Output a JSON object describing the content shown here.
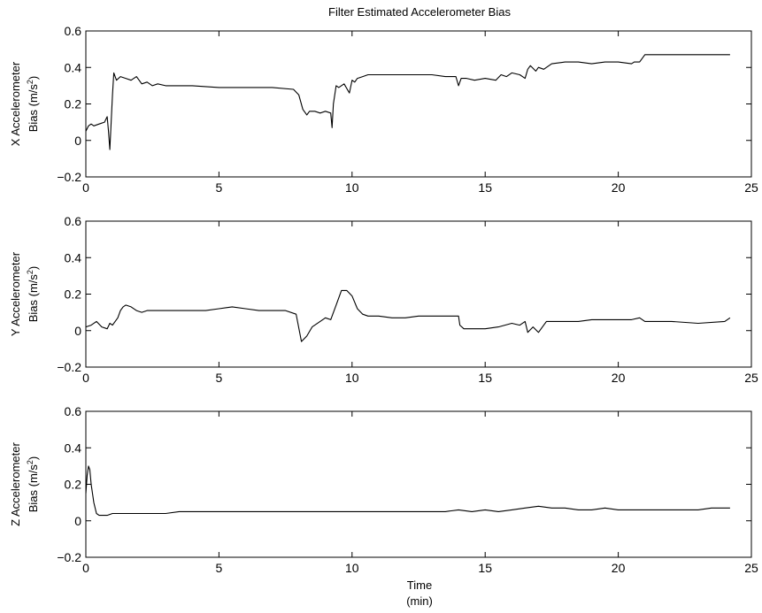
{
  "chart_data": {
    "title": "Filter Estimated Accelerometer Bias",
    "xlabel_line1": "Time",
    "xlabel_line2": "(min)",
    "panels": [
      {
        "type": "line",
        "ylabel_line1": "X Accelerometer",
        "ylabel_line2": "Bias (m/s",
        "ylabel_sup": "2",
        "ylabel_close": ")",
        "xlim": [
          0,
          25
        ],
        "ylim": [
          -0.2,
          0.6
        ],
        "xticks": [
          "0",
          "5",
          "10",
          "15",
          "20",
          "25"
        ],
        "yticks": [
          "−0.2",
          "0",
          "0.2",
          "0.4",
          "0.6"
        ],
        "series": [
          {
            "x": [
              0,
              0.1,
              0.2,
              0.3,
              0.5,
              0.7,
              0.8,
              0.85,
              0.9,
              0.95,
              1.0,
              1.05,
              1.15,
              1.3,
              1.5,
              1.7,
              1.9,
              2.1,
              2.3,
              2.5,
              2.7,
              3.0,
              3.5,
              4,
              5,
              6,
              7,
              7.8,
              8.0,
              8.15,
              8.3,
              8.4,
              8.6,
              8.8,
              9.0,
              9.2,
              9.25,
              9.3,
              9.4,
              9.5,
              9.7,
              9.9,
              10.0,
              10.1,
              10.2,
              10.4,
              10.6,
              11,
              11.5,
              12,
              12.5,
              13,
              13.5,
              13.9,
              14.0,
              14.1,
              14.3,
              14.6,
              15,
              15.4,
              15.6,
              15.8,
              16.0,
              16.3,
              16.5,
              16.6,
              16.7,
              16.9,
              17.0,
              17.2,
              17.5,
              18,
              18.5,
              19,
              19.5,
              20,
              20.5,
              20.6,
              20.8,
              21.0,
              21.5,
              22,
              23,
              24,
              24.2
            ],
            "y": [
              0.05,
              0.08,
              0.09,
              0.08,
              0.09,
              0.1,
              0.13,
              0.05,
              -0.05,
              0.1,
              0.25,
              0.37,
              0.33,
              0.35,
              0.34,
              0.33,
              0.35,
              0.31,
              0.32,
              0.3,
              0.31,
              0.3,
              0.3,
              0.3,
              0.29,
              0.29,
              0.29,
              0.28,
              0.25,
              0.17,
              0.14,
              0.16,
              0.16,
              0.15,
              0.16,
              0.15,
              0.07,
              0.2,
              0.3,
              0.29,
              0.31,
              0.26,
              0.33,
              0.32,
              0.34,
              0.35,
              0.36,
              0.36,
              0.36,
              0.36,
              0.36,
              0.36,
              0.35,
              0.35,
              0.3,
              0.34,
              0.34,
              0.33,
              0.34,
              0.33,
              0.36,
              0.35,
              0.37,
              0.36,
              0.34,
              0.39,
              0.41,
              0.38,
              0.4,
              0.39,
              0.42,
              0.43,
              0.43,
              0.42,
              0.43,
              0.43,
              0.42,
              0.43,
              0.43,
              0.47,
              0.47,
              0.47,
              0.47,
              0.47,
              0.47
            ]
          }
        ]
      },
      {
        "type": "line",
        "ylabel_line1": "Y Accelerometer",
        "ylabel_line2": "Bias (m/s",
        "ylabel_sup": "2",
        "ylabel_close": ")",
        "xlim": [
          0,
          25
        ],
        "ylim": [
          -0.2,
          0.6
        ],
        "xticks": [
          "0",
          "5",
          "10",
          "15",
          "20",
          "25"
        ],
        "yticks": [
          "−0.2",
          "0",
          "0.2",
          "0.4",
          "0.6"
        ],
        "series": [
          {
            "x": [
              0,
              0.2,
              0.4,
              0.6,
              0.8,
              0.9,
              1.0,
              1.1,
              1.2,
              1.3,
              1.4,
              1.5,
              1.7,
              1.9,
              2.1,
              2.3,
              2.5,
              3,
              3.5,
              4,
              4.5,
              5,
              5.5,
              6,
              6.5,
              7,
              7.5,
              7.9,
              8.1,
              8.3,
              8.5,
              8.8,
              9.0,
              9.2,
              9.4,
              9.6,
              9.8,
              10.0,
              10.2,
              10.4,
              10.6,
              11,
              11.5,
              12,
              12.5,
              13,
              13.5,
              14.0,
              14.05,
              14.2,
              14.5,
              15,
              15.5,
              16,
              16.3,
              16.5,
              16.6,
              16.8,
              17.0,
              17.1,
              17.3,
              17.5,
              18,
              18.5,
              19,
              19.5,
              20,
              20.5,
              20.8,
              21,
              21.5,
              22,
              23,
              24,
              24.2
            ],
            "y": [
              0.02,
              0.03,
              0.05,
              0.02,
              0.01,
              0.04,
              0.03,
              0.05,
              0.07,
              0.11,
              0.13,
              0.14,
              0.13,
              0.11,
              0.1,
              0.11,
              0.11,
              0.11,
              0.11,
              0.11,
              0.11,
              0.12,
              0.13,
              0.12,
              0.11,
              0.11,
              0.11,
              0.09,
              -0.06,
              -0.03,
              0.02,
              0.05,
              0.07,
              0.06,
              0.14,
              0.22,
              0.22,
              0.19,
              0.12,
              0.09,
              0.08,
              0.08,
              0.07,
              0.07,
              0.08,
              0.08,
              0.08,
              0.08,
              0.03,
              0.01,
              0.01,
              0.01,
              0.02,
              0.04,
              0.03,
              0.05,
              -0.01,
              0.02,
              -0.01,
              0.01,
              0.05,
              0.05,
              0.05,
              0.05,
              0.06,
              0.06,
              0.06,
              0.06,
              0.07,
              0.05,
              0.05,
              0.05,
              0.04,
              0.05,
              0.07
            ]
          }
        ]
      },
      {
        "type": "line",
        "ylabel_line1": "Z Accelerometer",
        "ylabel_line2": "Bias (m/s",
        "ylabel_sup": "2",
        "ylabel_close": ")",
        "xlim": [
          0,
          25
        ],
        "ylim": [
          -0.2,
          0.6
        ],
        "xticks": [
          "0",
          "5",
          "10",
          "15",
          "20",
          "25"
        ],
        "yticks": [
          "−0.2",
          "0",
          "0.2",
          "0.4",
          "0.6"
        ],
        "series": [
          {
            "x": [
              0,
              0.05,
              0.1,
              0.15,
              0.2,
              0.3,
              0.4,
              0.5,
              0.6,
              0.8,
              1.0,
              1.2,
              1.5,
              2,
              2.5,
              3,
              3.5,
              4,
              4.5,
              5,
              5.5,
              6,
              6.5,
              7,
              7.5,
              8,
              8.5,
              9,
              9.5,
              10,
              10.5,
              11,
              11.5,
              12,
              12.5,
              13,
              13.5,
              14,
              14.5,
              15,
              15.5,
              16,
              16.5,
              17,
              17.5,
              18,
              18.5,
              19,
              19.5,
              20,
              20.5,
              21,
              21.5,
              22,
              22.5,
              23,
              23.5,
              24,
              24.2
            ],
            "y": [
              0.15,
              0.25,
              0.3,
              0.28,
              0.2,
              0.1,
              0.04,
              0.03,
              0.03,
              0.03,
              0.04,
              0.04,
              0.04,
              0.04,
              0.04,
              0.04,
              0.05,
              0.05,
              0.05,
              0.05,
              0.05,
              0.05,
              0.05,
              0.05,
              0.05,
              0.05,
              0.05,
              0.05,
              0.05,
              0.05,
              0.05,
              0.05,
              0.05,
              0.05,
              0.05,
              0.05,
              0.05,
              0.06,
              0.05,
              0.06,
              0.05,
              0.06,
              0.07,
              0.08,
              0.07,
              0.07,
              0.06,
              0.06,
              0.07,
              0.06,
              0.06,
              0.06,
              0.06,
              0.06,
              0.06,
              0.06,
              0.07,
              0.07,
              0.07
            ]
          }
        ]
      }
    ]
  }
}
